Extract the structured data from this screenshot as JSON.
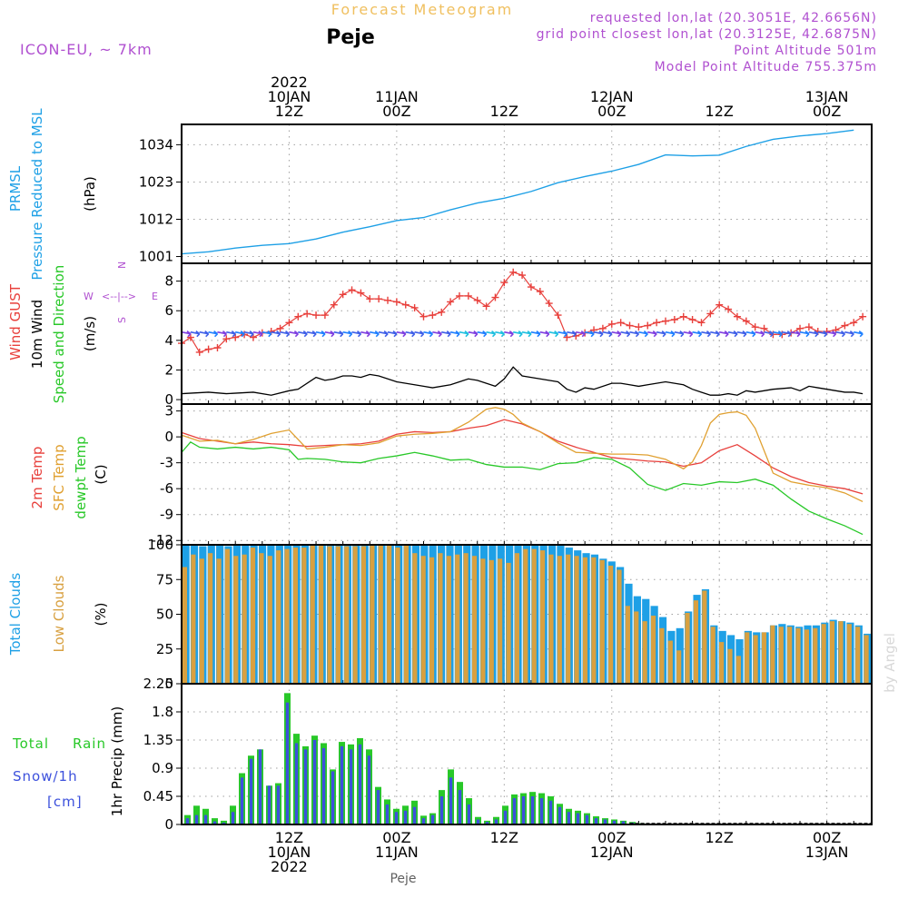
{
  "header": {
    "top_title": "Forecast Meteogram",
    "location": "Peje",
    "model": "ICON-EU, ~ 7km",
    "requested": "requested lon,lat (20.3051E, 42.6656N)",
    "grid_point": "grid point closest lon,lat (20.3125E, 42.6875N)",
    "point_altitude": "Point Altitude 501m",
    "model_altitude": "Model Point Altitude 755.375m",
    "credit": "by Angel",
    "bottom_location": "Peje"
  },
  "colors": {
    "pressure": "#1ea0e6",
    "gust": "#e8403c",
    "wind": "#000000",
    "direction": "#28c828",
    "temp": "#e8403c",
    "sfc": "#e0a030",
    "dewpt": "#28c828",
    "total_clouds": "#1ea0e6",
    "low_clouds": "#d8a040",
    "rain": "#28c828",
    "snow": "#3c50dc",
    "header_purple": "#b050d0",
    "header_orange": "#f0c060"
  },
  "time_axis": {
    "top_labels": [
      {
        "x": 12,
        "lines": [
          "2022",
          "10JAN",
          "12Z"
        ]
      },
      {
        "x": 24,
        "lines": [
          "11JAN",
          "00Z"
        ]
      },
      {
        "x": 36,
        "lines": [
          "12Z"
        ]
      },
      {
        "x": 48,
        "lines": [
          "12JAN",
          "00Z"
        ]
      },
      {
        "x": 60,
        "lines": [
          "12Z"
        ]
      },
      {
        "x": 72,
        "lines": [
          "13JAN",
          "00Z"
        ]
      }
    ],
    "bottom_labels": [
      {
        "x": 12,
        "lines": [
          "12Z",
          "10JAN",
          "2022"
        ]
      },
      {
        "x": 24,
        "lines": [
          "00Z",
          "11JAN"
        ]
      },
      {
        "x": 36,
        "lines": [
          "12Z"
        ]
      },
      {
        "x": 48,
        "lines": [
          "00Z",
          "12JAN"
        ]
      },
      {
        "x": 60,
        "lines": [
          "12Z"
        ]
      },
      {
        "x": 72,
        "lines": [
          "00Z",
          "13JAN"
        ]
      }
    ]
  },
  "chart_data": [
    {
      "type": "line",
      "panel": "pressure",
      "label_lines": [
        "PRMSL",
        "Pressure Reduced to MSL"
      ],
      "ylabel": "(hPa)",
      "ylim": [
        999,
        1040
      ],
      "yticks": [
        1001,
        1012,
        1023,
        1034
      ],
      "grid": true,
      "x_unit": "forecast hour",
      "series": [
        {
          "name": "PRMSL",
          "color": "#1ea0e6",
          "x": [
            0,
            3,
            6,
            9,
            12,
            15,
            18,
            21,
            24,
            27,
            30,
            33,
            36,
            39,
            42,
            45,
            48,
            51,
            54,
            57,
            60,
            63,
            66,
            69,
            72,
            75
          ],
          "y": [
            1001.8,
            1002.4,
            1003.5,
            1004.3,
            1004.8,
            1006.2,
            1008.2,
            1009.8,
            1011.6,
            1012.5,
            1014.8,
            1016.8,
            1018.2,
            1020.2,
            1022.8,
            1024.6,
            1026.2,
            1028.2,
            1031.0,
            1030.7,
            1030.9,
            1033.5,
            1035.6,
            1036.6,
            1037.3,
            1038.3
          ]
        }
      ]
    },
    {
      "type": "line",
      "panel": "wind",
      "label_lines": [
        {
          "text": "Wind GUST",
          "color": "#e8403c"
        },
        {
          "text": "10m Wind",
          "color": "#000000"
        },
        {
          "text": "Speed and Direction",
          "color": "#28c828"
        }
      ],
      "ylabel": "(m/s)",
      "ylim": [
        -0.3,
        9.2
      ],
      "yticks": [
        0,
        2,
        4,
        6,
        8
      ],
      "grid": true,
      "compass": {
        "n": "N",
        "s": "S",
        "e": "E",
        "w": "W"
      },
      "gust": {
        "name": "Wind GUST",
        "x": [
          0,
          1,
          2,
          3,
          4,
          5,
          6,
          7,
          8,
          9,
          10,
          11,
          12,
          13,
          14,
          15,
          16,
          17,
          18,
          19,
          20,
          21,
          22,
          23,
          24,
          25,
          26,
          27,
          28,
          29,
          30,
          31,
          32,
          33,
          34,
          35,
          36,
          37,
          38,
          39,
          40,
          41,
          42,
          43,
          44,
          45,
          46,
          47,
          48,
          49,
          50,
          51,
          52,
          53,
          54,
          55,
          56,
          57,
          58,
          59,
          60,
          61,
          62,
          63,
          64,
          65,
          66,
          67,
          68,
          69,
          70,
          71,
          72,
          73,
          74,
          75,
          76
        ],
        "y": [
          3.8,
          4.2,
          3.2,
          3.4,
          3.5,
          4.1,
          4.2,
          4.4,
          4.2,
          4.5,
          4.6,
          4.8,
          5.2,
          5.6,
          5.8,
          5.7,
          5.7,
          6.4,
          7.1,
          7.4,
          7.2,
          6.8,
          6.8,
          6.7,
          6.6,
          6.4,
          6.2,
          5.6,
          5.7,
          5.9,
          6.6,
          7.0,
          7.0,
          6.7,
          6.3,
          6.9,
          7.9,
          8.6,
          8.4,
          7.6,
          7.3,
          6.5,
          5.7,
          4.2,
          4.3,
          4.5,
          4.7,
          4.8,
          5.1,
          5.2,
          5.0,
          4.9,
          5.0,
          5.2,
          5.3,
          5.4,
          5.6,
          5.4,
          5.2,
          5.8,
          6.4,
          6.1,
          5.6,
          5.3,
          4.9,
          4.8,
          4.4,
          4.4,
          4.5,
          4.8,
          4.9,
          4.6,
          4.6,
          4.7,
          5.0,
          5.2,
          5.6
        ]
      },
      "wind_speed": {
        "name": "10m Wind",
        "x": [
          0,
          3,
          5,
          8,
          10,
          12,
          13,
          15,
          16,
          17,
          18,
          19,
          20,
          21,
          22,
          24,
          25,
          26,
          27,
          28,
          30,
          31,
          32,
          33,
          34,
          35,
          36,
          37,
          38,
          40,
          41,
          42,
          43,
          44,
          45,
          46,
          48,
          49,
          50,
          51,
          52,
          54,
          56,
          57,
          58,
          59,
          60,
          61,
          62,
          63,
          64,
          66,
          68,
          69,
          70,
          71,
          72,
          73,
          74,
          75,
          76
        ],
        "y": [
          0.4,
          0.5,
          0.4,
          0.5,
          0.3,
          0.6,
          0.7,
          1.5,
          1.3,
          1.4,
          1.6,
          1.6,
          1.5,
          1.7,
          1.6,
          1.2,
          1.1,
          1.0,
          0.9,
          0.8,
          1.0,
          1.2,
          1.4,
          1.3,
          1.1,
          0.9,
          1.4,
          2.2,
          1.6,
          1.4,
          1.3,
          1.2,
          0.7,
          0.5,
          0.8,
          0.7,
          1.1,
          1.1,
          1.0,
          0.9,
          1.0,
          1.2,
          1.0,
          0.7,
          0.5,
          0.3,
          0.3,
          0.4,
          0.3,
          0.6,
          0.5,
          0.7,
          0.8,
          0.6,
          0.9,
          0.8,
          0.7,
          0.6,
          0.5,
          0.5,
          0.4
        ]
      },
      "direction_arrows": {
        "y": 4.5,
        "count": 76
      }
    },
    {
      "type": "line",
      "panel": "temperature",
      "label_lines": [
        {
          "text": "2m Temp",
          "color": "#e8403c"
        },
        {
          "text": "SFC Temp",
          "color": "#e0a030"
        },
        {
          "text": "dewpt Temp",
          "color": "#28c828"
        }
      ],
      "ylabel": "(C)",
      "ylim": [
        -12.5,
        3.8
      ],
      "yticks": [
        -12,
        -9,
        -6,
        -3,
        0,
        3
      ],
      "grid": true,
      "series": [
        {
          "name": "2m Temp",
          "color": "#e8403c",
          "x": [
            0,
            2,
            4,
            6,
            8,
            10,
            12,
            14,
            16,
            18,
            20,
            22,
            24,
            26,
            28,
            30,
            32,
            34,
            36,
            38,
            40,
            42,
            44,
            46,
            48,
            50,
            52,
            54,
            56,
            58,
            60,
            62,
            64,
            66,
            68,
            70,
            72,
            74,
            76
          ],
          "y": [
            0.5,
            -0.2,
            -0.5,
            -0.8,
            -0.6,
            -0.8,
            -0.9,
            -1.1,
            -1.0,
            -0.9,
            -0.8,
            -0.5,
            0.3,
            0.6,
            0.5,
            0.6,
            1.0,
            1.3,
            2.0,
            1.5,
            0.6,
            -0.5,
            -1.2,
            -1.8,
            -2.4,
            -2.6,
            -2.8,
            -2.9,
            -3.4,
            -3.0,
            -1.6,
            -0.9,
            -2.2,
            -3.6,
            -4.6,
            -5.3,
            -5.7,
            -6.0,
            -6.6
          ]
        },
        {
          "name": "SFC Temp",
          "color": "#e0a030",
          "x": [
            0,
            2,
            4,
            6,
            8,
            10,
            12,
            14,
            16,
            18,
            20,
            22,
            24,
            26,
            28,
            30,
            32,
            34,
            35,
            36,
            37,
            38,
            40,
            42,
            44,
            46,
            48,
            50,
            52,
            54,
            56,
            57,
            58,
            59,
            60,
            61,
            62,
            63,
            64,
            66,
            68,
            70,
            72,
            74,
            76
          ],
          "y": [
            0.2,
            -0.5,
            -0.4,
            -0.8,
            -0.3,
            0.4,
            0.8,
            -1.4,
            -1.2,
            -0.9,
            -1.0,
            -0.7,
            0.1,
            0.3,
            0.4,
            0.6,
            1.7,
            3.2,
            3.4,
            3.2,
            2.6,
            1.6,
            0.6,
            -0.7,
            -1.8,
            -1.9,
            -2.0,
            -2.0,
            -2.1,
            -2.6,
            -3.7,
            -2.9,
            -1.0,
            1.6,
            2.6,
            2.8,
            2.9,
            2.5,
            1.0,
            -4.2,
            -5.2,
            -5.6,
            -5.9,
            -6.5,
            -7.5
          ]
        },
        {
          "name": "dewpt Temp",
          "color": "#28c828",
          "x": [
            0,
            1,
            2,
            4,
            6,
            8,
            10,
            12,
            13,
            14,
            16,
            18,
            20,
            22,
            24,
            26,
            28,
            30,
            32,
            34,
            36,
            38,
            40,
            42,
            44,
            46,
            48,
            50,
            52,
            54,
            56,
            58,
            60,
            62,
            64,
            66,
            68,
            70,
            72,
            74,
            76
          ],
          "y": [
            -1.8,
            -0.6,
            -1.2,
            -1.4,
            -1.2,
            -1.4,
            -1.2,
            -1.5,
            -2.6,
            -2.5,
            -2.6,
            -2.9,
            -3.0,
            -2.5,
            -2.2,
            -1.8,
            -2.2,
            -2.7,
            -2.6,
            -3.2,
            -3.5,
            -3.5,
            -3.8,
            -3.1,
            -3.0,
            -2.4,
            -2.6,
            -3.6,
            -5.5,
            -6.2,
            -5.4,
            -5.6,
            -5.2,
            -5.3,
            -4.9,
            -5.6,
            -7.2,
            -8.6,
            -9.5,
            -10.3,
            -11.3
          ]
        }
      ]
    },
    {
      "type": "bar",
      "panel": "clouds",
      "label_lines": [
        {
          "text": "Total Clouds",
          "color": "#1ea0e6"
        },
        {
          "text": "Low Clouds",
          "color": "#d8a040"
        }
      ],
      "ylabel": "(%)",
      "ylim": [
        0,
        100
      ],
      "yticks": [
        0,
        25,
        50,
        75,
        100
      ],
      "grid": true,
      "total_clouds": [
        100,
        100,
        99,
        100,
        100,
        99,
        100,
        100,
        100,
        100,
        100,
        100,
        100,
        100,
        100,
        100,
        100,
        100,
        100,
        100,
        100,
        100,
        100,
        100,
        100,
        100,
        100,
        100,
        100,
        100,
        100,
        100,
        100,
        100,
        100,
        100,
        100,
        100,
        100,
        100,
        100,
        100,
        100,
        100,
        100,
        98,
        96,
        94,
        93,
        90,
        88,
        84,
        72,
        63,
        61,
        56,
        48,
        38,
        40,
        52,
        64,
        68,
        42,
        38,
        35,
        32,
        38,
        37,
        37,
        42,
        43,
        42,
        41,
        42,
        42,
        44,
        46,
        45,
        44,
        42,
        36
      ],
      "low_clouds": [
        84,
        93,
        90,
        94,
        90,
        97,
        92,
        93,
        98,
        94,
        92,
        96,
        97,
        98,
        98,
        100,
        100,
        99,
        99,
        99,
        99,
        99,
        100,
        100,
        100,
        98,
        100,
        94,
        92,
        91,
        94,
        92,
        93,
        94,
        92,
        90,
        89,
        90,
        87,
        94,
        97,
        97,
        96,
        93,
        92,
        93,
        92,
        91,
        91,
        89,
        85,
        82,
        56,
        52,
        45,
        49,
        40,
        31,
        24,
        51,
        60,
        67,
        41,
        30,
        25,
        20,
        37,
        35,
        37,
        42,
        41,
        41,
        40,
        39,
        40,
        43,
        45,
        45,
        43,
        41,
        35
      ]
    },
    {
      "type": "bar",
      "panel": "precip",
      "label_lines": [
        {
          "text": "Total",
          "color": "#28c828"
        },
        {
          "text": "Rain",
          "color": "#28c828"
        },
        {
          "text": "Snow/1h",
          "color": "#3c50dc"
        },
        {
          "text": "[cm]",
          "color": "#3c50dc"
        }
      ],
      "ylabel": "1hr Precip (mm)",
      "ylim": [
        0,
        2.25
      ],
      "yticks": [
        0,
        0.45,
        0.9,
        1.35,
        1.8,
        2.25
      ],
      "ytick_labels": [
        "0",
        "0.45",
        "0.9",
        "1.35",
        "1.8",
        "2.25"
      ],
      "grid": true,
      "total_rain": [
        0.15,
        0.3,
        0.25,
        0.1,
        0.06,
        0.3,
        0.82,
        1.1,
        1.2,
        0.62,
        0.66,
        2.1,
        1.45,
        1.25,
        1.42,
        1.3,
        0.88,
        1.32,
        1.28,
        1.38,
        1.2,
        0.6,
        0.4,
        0.25,
        0.3,
        0.38,
        0.14,
        0.18,
        0.55,
        0.88,
        0.68,
        0.42,
        0.12,
        0.06,
        0.12,
        0.3,
        0.48,
        0.5,
        0.52,
        0.5,
        0.45,
        0.33,
        0.25,
        0.22,
        0.18,
        0.13,
        0.1,
        0.08,
        0.06,
        0.04,
        0.02,
        0.01,
        0.005,
        0,
        0,
        0,
        0,
        0,
        0,
        0,
        0,
        0,
        0,
        0,
        0,
        0,
        0,
        0,
        0,
        0,
        0,
        0,
        0,
        0,
        0,
        0
      ],
      "snow": [
        0.1,
        0.15,
        0.15,
        0.05,
        0.03,
        0.2,
        0.75,
        1.05,
        1.2,
        0.62,
        0.62,
        1.95,
        1.3,
        1.2,
        1.35,
        1.22,
        0.85,
        1.25,
        1.2,
        1.28,
        1.1,
        0.55,
        0.32,
        0.2,
        0.22,
        0.28,
        0.1,
        0.15,
        0.45,
        0.75,
        0.55,
        0.32,
        0.08,
        0.04,
        0.08,
        0.22,
        0.42,
        0.45,
        0.45,
        0.42,
        0.38,
        0.28,
        0.2,
        0.18,
        0.15,
        0.1,
        0.08,
        0.06,
        0.05,
        0.03,
        0.015,
        0.008,
        0.004,
        0,
        0,
        0,
        0,
        0,
        0,
        0,
        0,
        0,
        0,
        0,
        0,
        0,
        0,
        0,
        0,
        0,
        0,
        0,
        0,
        0,
        0,
        0
      ]
    }
  ]
}
